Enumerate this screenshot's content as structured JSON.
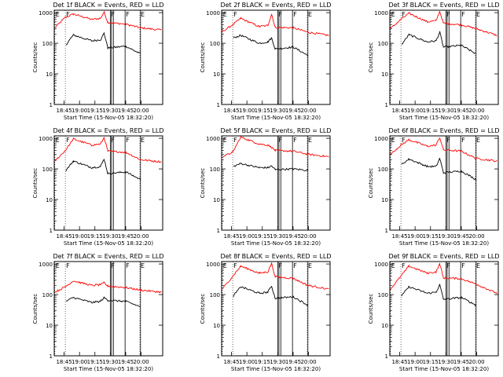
{
  "chart_data": {
    "type": "line",
    "xlabel": "Start Time (15-Nov-05 18:32:20)",
    "ylabel": "Counts/sec",
    "yscale": "log",
    "ylim": [
      1,
      1200
    ],
    "xlim": [
      18.59,
      20.35
    ],
    "xticks": [
      "18:45",
      "19:00",
      "19:15",
      "19:30",
      "19:45",
      "20:00"
    ],
    "yticks": [
      "1",
      "10",
      "100",
      "1000"
    ],
    "series_colors": {
      "events": "#000000",
      "lld": "#ff0000"
    },
    "region_markers": [
      {
        "label": "E",
        "x": 18.6
      },
      {
        "label": "F",
        "x": 18.77
      },
      {
        "label": "F",
        "x": 19.5
      },
      {
        "label": "F",
        "x": 19.74
      },
      {
        "label": "E",
        "x": 19.98
      }
    ],
    "gap_lines": [
      19.5,
      19.52,
      19.55,
      19.74,
      19.99
    ],
    "panels": [
      {
        "title": "Det 1f BLACK = Events, RED = LLD",
        "events": [
          [
            18.78,
            90
          ],
          [
            18.9,
            185
          ],
          [
            19.2,
            120
          ],
          [
            19.34,
            130
          ],
          [
            19.4,
            210
          ],
          [
            19.46,
            70
          ],
          [
            19.75,
            80
          ],
          [
            19.99,
            45
          ]
        ],
        "lld": [
          [
            18.6,
            320
          ],
          [
            18.77,
            700
          ],
          [
            18.9,
            900
          ],
          [
            19.2,
            600
          ],
          [
            19.34,
            650
          ],
          [
            19.4,
            1050
          ],
          [
            19.46,
            480
          ],
          [
            19.75,
            420
          ],
          [
            19.99,
            320
          ],
          [
            20.33,
            270
          ]
        ]
      },
      {
        "title": "Det 2f BLACK = Events, RED = LLD",
        "events": [
          [
            18.78,
            150
          ],
          [
            18.9,
            180
          ],
          [
            19.2,
            100
          ],
          [
            19.34,
            110
          ],
          [
            19.4,
            150
          ],
          [
            19.46,
            65
          ],
          [
            19.75,
            75
          ],
          [
            19.99,
            40
          ]
        ],
        "lld": [
          [
            18.6,
            240
          ],
          [
            18.77,
            400
          ],
          [
            18.9,
            650
          ],
          [
            19.2,
            350
          ],
          [
            19.34,
            380
          ],
          [
            19.4,
            900
          ],
          [
            19.46,
            330
          ],
          [
            19.75,
            320
          ],
          [
            19.99,
            230
          ],
          [
            20.33,
            180
          ]
        ]
      },
      {
        "title": "Det 3f BLACK = Events, RED = LLD",
        "events": [
          [
            18.78,
            90
          ],
          [
            18.9,
            190
          ],
          [
            19.2,
            110
          ],
          [
            19.34,
            120
          ],
          [
            19.4,
            230
          ],
          [
            19.46,
            75
          ],
          [
            19.75,
            85
          ],
          [
            19.99,
            45
          ]
        ],
        "lld": [
          [
            18.6,
            300
          ],
          [
            18.77,
            600
          ],
          [
            18.9,
            950
          ],
          [
            19.2,
            500
          ],
          [
            19.34,
            550
          ],
          [
            19.4,
            1100
          ],
          [
            19.46,
            450
          ],
          [
            19.75,
            400
          ],
          [
            19.99,
            300
          ],
          [
            20.33,
            180
          ]
        ]
      },
      {
        "title": "Det 4f BLACK = Events, RED = LLD",
        "events": [
          [
            18.78,
            90
          ],
          [
            18.9,
            180
          ],
          [
            19.2,
            110
          ],
          [
            19.34,
            120
          ],
          [
            19.4,
            210
          ],
          [
            19.46,
            70
          ],
          [
            19.75,
            80
          ],
          [
            19.99,
            45
          ]
        ],
        "lld": [
          [
            18.6,
            180
          ],
          [
            18.77,
            400
          ],
          [
            18.9,
            950
          ],
          [
            19.2,
            600
          ],
          [
            19.34,
            650
          ],
          [
            19.4,
            1050
          ],
          [
            19.46,
            380
          ],
          [
            19.75,
            350
          ],
          [
            19.99,
            200
          ],
          [
            20.33,
            170
          ]
        ]
      },
      {
        "title": "Det 5f BLACK = Events, RED = LLD",
        "events": [
          [
            18.78,
            120
          ],
          [
            18.9,
            150
          ],
          [
            19.2,
            110
          ],
          [
            19.34,
            110
          ],
          [
            19.4,
            125
          ],
          [
            19.46,
            95
          ],
          [
            19.75,
            100
          ],
          [
            19.99,
            90
          ]
        ],
        "lld": [
          [
            18.6,
            250
          ],
          [
            18.77,
            350
          ],
          [
            18.9,
            1100
          ],
          [
            19.2,
            650
          ],
          [
            19.34,
            600
          ],
          [
            19.4,
            500
          ],
          [
            19.46,
            400
          ],
          [
            19.75,
            380
          ],
          [
            19.99,
            300
          ],
          [
            20.33,
            250
          ]
        ]
      },
      {
        "title": "Det 6f BLACK = Events, RED = LLD",
        "events": [
          [
            18.78,
            140
          ],
          [
            18.9,
            210
          ],
          [
            19.2,
            120
          ],
          [
            19.34,
            120
          ],
          [
            19.4,
            220
          ],
          [
            19.46,
            75
          ],
          [
            19.75,
            85
          ],
          [
            19.99,
            45
          ]
        ],
        "lld": [
          [
            18.6,
            300
          ],
          [
            18.77,
            600
          ],
          [
            18.9,
            900
          ],
          [
            19.2,
            550
          ],
          [
            19.34,
            600
          ],
          [
            19.4,
            1050
          ],
          [
            19.46,
            420
          ],
          [
            19.75,
            380
          ],
          [
            19.99,
            220
          ],
          [
            20.33,
            180
          ]
        ]
      },
      {
        "title": "Det 7f BLACK = Events, RED = LLD",
        "events": [
          [
            18.78,
            60
          ],
          [
            18.9,
            80
          ],
          [
            19.2,
            55
          ],
          [
            19.34,
            60
          ],
          [
            19.4,
            80
          ],
          [
            19.46,
            65
          ],
          [
            19.75,
            60
          ],
          [
            19.99,
            40
          ]
        ],
        "lld": [
          [
            18.6,
            120
          ],
          [
            18.77,
            180
          ],
          [
            18.9,
            280
          ],
          [
            19.2,
            200
          ],
          [
            19.34,
            210
          ],
          [
            19.4,
            240
          ],
          [
            19.46,
            190
          ],
          [
            19.75,
            170
          ],
          [
            19.99,
            140
          ],
          [
            20.33,
            120
          ]
        ]
      },
      {
        "title": "Det 8f BLACK = Events, RED = LLD",
        "events": [
          [
            18.78,
            90
          ],
          [
            18.9,
            180
          ],
          [
            19.2,
            110
          ],
          [
            19.34,
            120
          ],
          [
            19.4,
            190
          ],
          [
            19.46,
            75
          ],
          [
            19.75,
            85
          ],
          [
            19.99,
            45
          ]
        ],
        "lld": [
          [
            18.6,
            150
          ],
          [
            18.77,
            400
          ],
          [
            18.9,
            850
          ],
          [
            19.2,
            500
          ],
          [
            19.34,
            550
          ],
          [
            19.4,
            1050
          ],
          [
            19.46,
            380
          ],
          [
            19.75,
            340
          ],
          [
            19.99,
            200
          ],
          [
            20.33,
            150
          ]
        ]
      },
      {
        "title": "Det 9f BLACK = Events, RED = LLD",
        "events": [
          [
            18.78,
            90
          ],
          [
            18.9,
            180
          ],
          [
            19.2,
            110
          ],
          [
            19.34,
            120
          ],
          [
            19.4,
            210
          ],
          [
            19.46,
            70
          ],
          [
            19.75,
            80
          ],
          [
            19.99,
            45
          ]
        ],
        "lld": [
          [
            18.6,
            150
          ],
          [
            18.77,
            400
          ],
          [
            18.9,
            850
          ],
          [
            19.2,
            500
          ],
          [
            19.34,
            550
          ],
          [
            19.4,
            1000
          ],
          [
            19.46,
            350
          ],
          [
            19.75,
            330
          ],
          [
            19.99,
            220
          ],
          [
            20.33,
            110
          ]
        ]
      }
    ]
  }
}
